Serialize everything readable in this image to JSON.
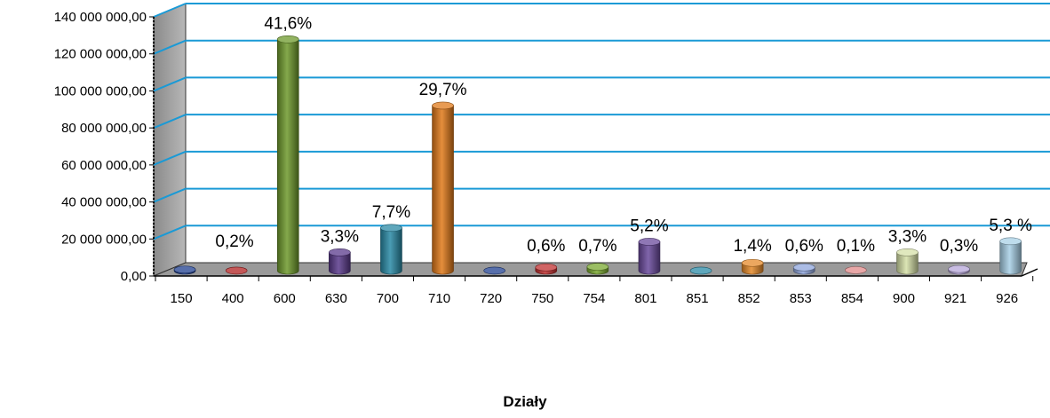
{
  "chart_data": {
    "type": "bar",
    "title": "",
    "xlabel": "Działy",
    "ylabel": "",
    "ylim": [
      0,
      140000000
    ],
    "y_ticks": [
      "0,00",
      "20 000 000,00",
      "40 000 000,00",
      "60 000 000,00",
      "80 000 000,00",
      "100 000 000,00",
      "120 000 000,00",
      "140 000 000,00"
    ],
    "grid": true,
    "legend": "none",
    "categories": [
      "150",
      "400",
      "600",
      "630",
      "700",
      "710",
      "720",
      "750",
      "754",
      "801",
      "851",
      "852",
      "853",
      "854",
      "900",
      "921",
      "926"
    ],
    "values": [
      600000,
      50000,
      125000000,
      9900000,
      23100000,
      89200000,
      30000,
      1800000,
      2100000,
      15600000,
      20000,
      4200000,
      1800000,
      300000,
      9900000,
      900000,
      15900000
    ],
    "labels": [
      "0,2%",
      "",
      "41,6%",
      "3,3%",
      "7,7%",
      "29,7%",
      "",
      "0,6%",
      "0,7%",
      "5,2%",
      "",
      "1,4%",
      "0,6%",
      "0,1%",
      "3,3%",
      "0,3%",
      "5,3 %"
    ],
    "colors": [
      "#1f3f8f",
      "#b02020",
      "#6e9a2c",
      "#5a3a8c",
      "#2a8aa6",
      "#e07a1a",
      "#1f3f8f",
      "#c03030",
      "#7aa830",
      "#6a4a9c",
      "#2a8aa6",
      "#e58a2a",
      "#8fa6dc",
      "#e08a8a",
      "#d6e0a8",
      "#b6a6d8",
      "#a8d0e6"
    ]
  }
}
